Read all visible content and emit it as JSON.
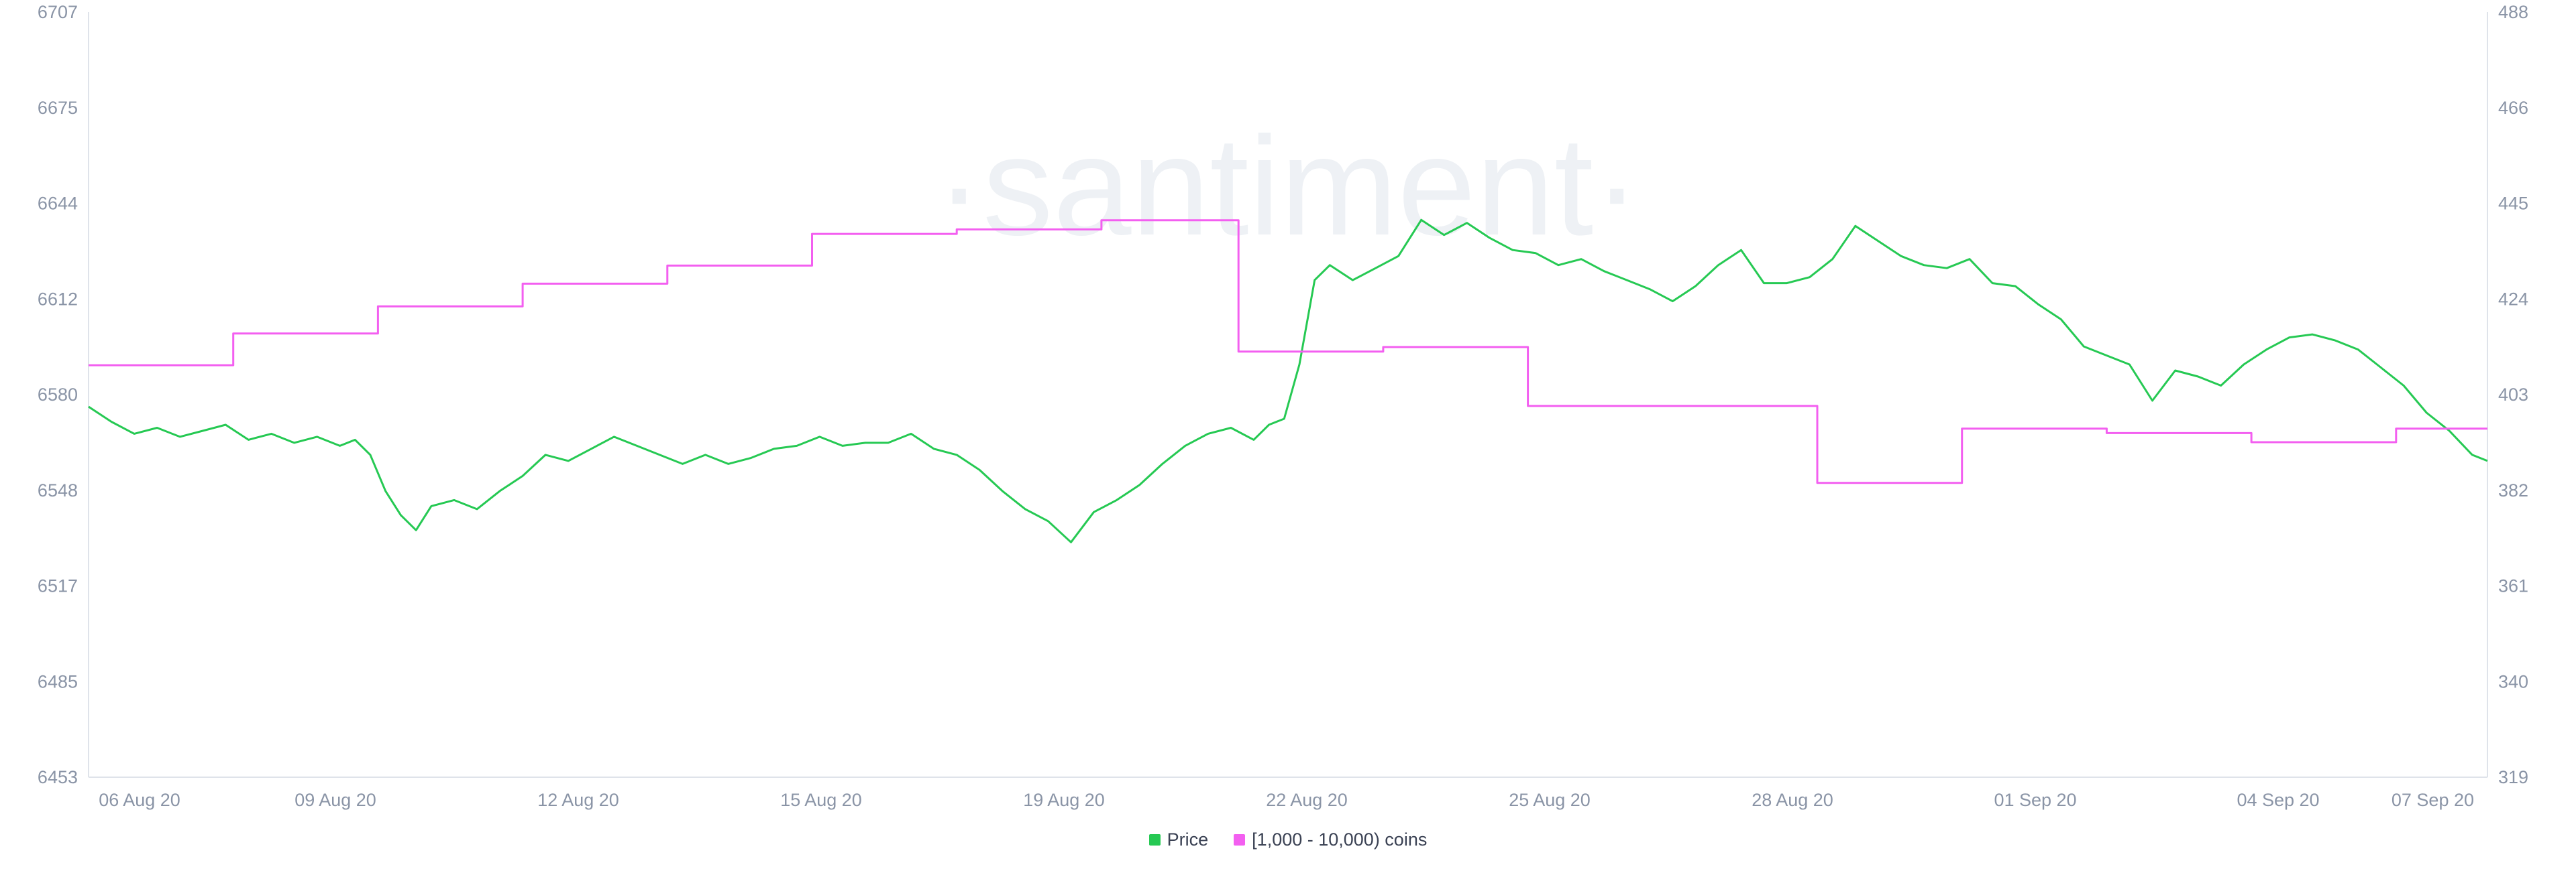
{
  "watermark": "·santiment·",
  "legend": {
    "price_label": "Price",
    "holders_label": "[1,000 - 10,000) coins"
  },
  "colors": {
    "price": "#26c953",
    "holders": "#f35ff0",
    "axis": "#dfe3ea",
    "tick_text": "#8a94a6"
  },
  "chart_data": {
    "type": "line",
    "x_ticks": [
      "06 Aug 20",
      "09 Aug 20",
      "12 Aug 20",
      "15 Aug 20",
      "19 Aug 20",
      "22 Aug 20",
      "25 Aug 20",
      "28 Aug 20",
      "01 Sep 20",
      "04 Sep 20",
      "07 Sep 20"
    ],
    "y_left": {
      "ticks": [
        6707,
        6675,
        6644,
        6612,
        6580,
        6548,
        6517,
        6485,
        6453
      ],
      "range": [
        6453,
        6707
      ]
    },
    "y_right": {
      "ticks": [
        488,
        466,
        445,
        424,
        403,
        382,
        361,
        340,
        319
      ],
      "range": [
        319,
        488
      ]
    },
    "x_range": [
      0,
      31.5
    ],
    "series": [
      {
        "name": "Price",
        "axis": "left",
        "values": [
          [
            0,
            6576
          ],
          [
            0.3,
            6571
          ],
          [
            0.6,
            6567
          ],
          [
            0.9,
            6569
          ],
          [
            1.2,
            6566
          ],
          [
            1.5,
            6568
          ],
          [
            1.8,
            6570
          ],
          [
            2.1,
            6565
          ],
          [
            2.4,
            6567
          ],
          [
            2.7,
            6564
          ],
          [
            3.0,
            6566
          ],
          [
            3.3,
            6563
          ],
          [
            3.5,
            6565
          ],
          [
            3.7,
            6560
          ],
          [
            3.9,
            6548
          ],
          [
            4.1,
            6540
          ],
          [
            4.3,
            6535
          ],
          [
            4.5,
            6543
          ],
          [
            4.8,
            6545
          ],
          [
            5.1,
            6542
          ],
          [
            5.4,
            6548
          ],
          [
            5.7,
            6553
          ],
          [
            6.0,
            6560
          ],
          [
            6.3,
            6558
          ],
          [
            6.6,
            6562
          ],
          [
            6.9,
            6566
          ],
          [
            7.2,
            6563
          ],
          [
            7.5,
            6560
          ],
          [
            7.8,
            6557
          ],
          [
            8.1,
            6560
          ],
          [
            8.4,
            6557
          ],
          [
            8.7,
            6559
          ],
          [
            9.0,
            6562
          ],
          [
            9.3,
            6563
          ],
          [
            9.6,
            6566
          ],
          [
            9.9,
            6563
          ],
          [
            10.2,
            6564
          ],
          [
            10.5,
            6564
          ],
          [
            10.8,
            6567
          ],
          [
            11.1,
            6562
          ],
          [
            11.4,
            6560
          ],
          [
            11.7,
            6555
          ],
          [
            12.0,
            6548
          ],
          [
            12.3,
            6542
          ],
          [
            12.6,
            6538
          ],
          [
            12.9,
            6531
          ],
          [
            13.2,
            6541
          ],
          [
            13.5,
            6545
          ],
          [
            13.8,
            6550
          ],
          [
            14.1,
            6557
          ],
          [
            14.4,
            6563
          ],
          [
            14.7,
            6567
          ],
          [
            15.0,
            6569
          ],
          [
            15.3,
            6565
          ],
          [
            15.5,
            6570
          ],
          [
            15.7,
            6572
          ],
          [
            15.9,
            6590
          ],
          [
            16.1,
            6618
          ],
          [
            16.3,
            6623
          ],
          [
            16.6,
            6618
          ],
          [
            16.9,
            6622
          ],
          [
            17.2,
            6626
          ],
          [
            17.5,
            6638
          ],
          [
            17.8,
            6633
          ],
          [
            18.1,
            6637
          ],
          [
            18.4,
            6632
          ],
          [
            18.7,
            6628
          ],
          [
            19.0,
            6627
          ],
          [
            19.3,
            6623
          ],
          [
            19.6,
            6625
          ],
          [
            19.9,
            6621
          ],
          [
            20.2,
            6618
          ],
          [
            20.5,
            6615
          ],
          [
            20.8,
            6611
          ],
          [
            21.1,
            6616
          ],
          [
            21.4,
            6623
          ],
          [
            21.7,
            6628
          ],
          [
            22.0,
            6617
          ],
          [
            22.3,
            6617
          ],
          [
            22.6,
            6619
          ],
          [
            22.9,
            6625
          ],
          [
            23.2,
            6636
          ],
          [
            23.5,
            6631
          ],
          [
            23.8,
            6626
          ],
          [
            24.1,
            6623
          ],
          [
            24.4,
            6622
          ],
          [
            24.7,
            6625
          ],
          [
            25.0,
            6617
          ],
          [
            25.3,
            6616
          ],
          [
            25.6,
            6610
          ],
          [
            25.9,
            6605
          ],
          [
            26.2,
            6596
          ],
          [
            26.5,
            6593
          ],
          [
            26.8,
            6590
          ],
          [
            27.1,
            6578
          ],
          [
            27.4,
            6588
          ],
          [
            27.7,
            6586
          ],
          [
            28.0,
            6583
          ],
          [
            28.3,
            6590
          ],
          [
            28.6,
            6595
          ],
          [
            28.9,
            6599
          ],
          [
            29.2,
            6600
          ],
          [
            29.5,
            6598
          ],
          [
            29.8,
            6595
          ],
          [
            30.1,
            6589
          ],
          [
            30.4,
            6583
          ],
          [
            30.7,
            6574
          ],
          [
            31.0,
            6568
          ],
          [
            31.3,
            6560
          ],
          [
            31.5,
            6558
          ]
        ]
      },
      {
        "name": "[1,000 - 10,000) coins",
        "axis": "right",
        "values": [
          [
            0,
            410
          ],
          [
            1.9,
            410
          ],
          [
            1.9,
            417
          ],
          [
            3.8,
            417
          ],
          [
            3.8,
            423
          ],
          [
            5.7,
            423
          ],
          [
            5.7,
            428
          ],
          [
            7.6,
            428
          ],
          [
            7.6,
            432
          ],
          [
            9.5,
            432
          ],
          [
            9.5,
            439
          ],
          [
            11.4,
            439
          ],
          [
            11.4,
            440
          ],
          [
            13.3,
            440
          ],
          [
            13.3,
            442
          ],
          [
            15.1,
            442
          ],
          [
            15.1,
            413
          ],
          [
            17.0,
            413
          ],
          [
            17.0,
            414
          ],
          [
            18.9,
            414
          ],
          [
            18.9,
            401
          ],
          [
            22.7,
            401
          ],
          [
            22.7,
            384
          ],
          [
            24.6,
            384
          ],
          [
            24.6,
            396
          ],
          [
            26.5,
            396
          ],
          [
            26.5,
            395
          ],
          [
            28.4,
            395
          ],
          [
            28.4,
            393
          ],
          [
            30.3,
            393
          ],
          [
            30.3,
            396
          ],
          [
            31.5,
            396
          ]
        ]
      }
    ]
  }
}
